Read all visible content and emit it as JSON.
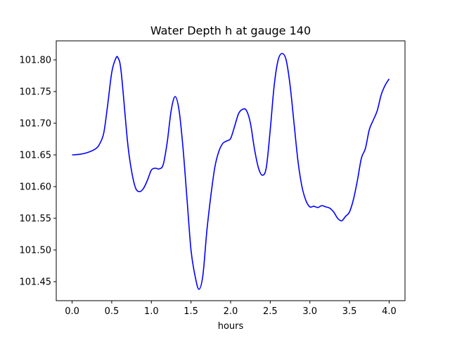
{
  "chart_data": {
    "type": "line",
    "title": "Water Depth h at gauge 140",
    "xlabel": "hours",
    "ylabel": "",
    "xlim": [
      -0.2,
      4.2
    ],
    "ylim": [
      101.42,
      101.83
    ],
    "xticks": [
      0.0,
      0.5,
      1.0,
      1.5,
      2.0,
      2.5,
      3.0,
      3.5,
      4.0
    ],
    "xtick_labels": [
      "0.0",
      "0.5",
      "1.0",
      "1.5",
      "2.0",
      "2.5",
      "3.0",
      "3.5",
      "4.0"
    ],
    "yticks": [
      101.45,
      101.5,
      101.55,
      101.6,
      101.65,
      101.7,
      101.75,
      101.8
    ],
    "ytick_labels": [
      "101.45",
      "101.50",
      "101.55",
      "101.60",
      "101.65",
      "101.70",
      "101.75",
      "101.80"
    ],
    "grid": false,
    "series": [
      {
        "color": "#0000ff",
        "x": [
          0.0,
          0.1,
          0.2,
          0.3,
          0.35,
          0.4,
          0.45,
          0.5,
          0.55,
          0.58,
          0.62,
          0.7,
          0.75,
          0.8,
          0.85,
          0.9,
          0.95,
          1.0,
          1.05,
          1.1,
          1.15,
          1.2,
          1.25,
          1.3,
          1.35,
          1.4,
          1.45,
          1.5,
          1.55,
          1.6,
          1.65,
          1.7,
          1.75,
          1.8,
          1.85,
          1.9,
          1.95,
          2.0,
          2.05,
          2.1,
          2.15,
          2.2,
          2.25,
          2.3,
          2.35,
          2.4,
          2.45,
          2.5,
          2.55,
          2.6,
          2.65,
          2.7,
          2.75,
          2.8,
          2.85,
          2.9,
          2.95,
          3.0,
          3.05,
          3.1,
          3.15,
          3.2,
          3.25,
          3.3,
          3.35,
          3.4,
          3.45,
          3.5,
          3.55,
          3.6,
          3.65,
          3.7,
          3.75,
          3.8,
          3.85,
          3.9,
          3.95,
          4.0
        ],
        "y": [
          101.65,
          101.651,
          101.654,
          101.66,
          101.668,
          101.685,
          101.73,
          101.78,
          101.802,
          101.803,
          101.78,
          101.67,
          101.625,
          101.598,
          101.592,
          101.597,
          101.61,
          101.626,
          101.629,
          101.628,
          101.635,
          101.67,
          101.72,
          101.742,
          101.72,
          101.66,
          101.58,
          101.5,
          101.46,
          101.438,
          101.46,
          101.53,
          101.585,
          101.63,
          101.655,
          101.668,
          101.672,
          101.676,
          101.695,
          101.715,
          101.722,
          101.72,
          101.7,
          101.66,
          101.63,
          101.618,
          101.63,
          101.69,
          101.76,
          101.8,
          101.81,
          101.8,
          101.76,
          101.7,
          101.64,
          101.6,
          101.578,
          101.568,
          101.569,
          101.567,
          101.57,
          101.568,
          101.566,
          101.56,
          101.55,
          101.546,
          101.553,
          101.56,
          101.58,
          101.61,
          101.645,
          101.66,
          101.69,
          101.705,
          101.72,
          101.745,
          101.76,
          101.77
        ]
      }
    ]
  }
}
